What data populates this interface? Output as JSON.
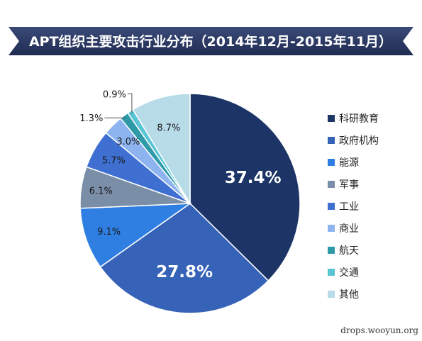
{
  "chart_data": {
    "type": "pie",
    "title": "APT组织主要攻击行业分布（2014年12月-2015年11月）",
    "slices": [
      {
        "name": "科研教育",
        "value": 37.4,
        "label": "37.4%",
        "color": "#1c3466",
        "label_style": "big"
      },
      {
        "name": "政府机构",
        "value": 27.8,
        "label": "27.8%",
        "color": "#3663b8",
        "label_style": "big"
      },
      {
        "name": "能源",
        "value": 9.1,
        "label": "9.1%",
        "color": "#2f7fe3",
        "label_style": "dark"
      },
      {
        "name": "军事",
        "value": 6.1,
        "label": "6.1%",
        "color": "#7a8ea8",
        "label_style": "dark"
      },
      {
        "name": "工业",
        "value": 5.7,
        "label": "5.7%",
        "color": "#3f6fd0",
        "label_style": "dark"
      },
      {
        "name": "商业",
        "value": 3.0,
        "label": "3.0%",
        "color": "#8eb4f0",
        "label_style": "dark"
      },
      {
        "name": "航天",
        "value": 1.3,
        "label": "1.3%",
        "color": "#2e9aa8",
        "label_style": "outside"
      },
      {
        "name": "交通",
        "value": 0.9,
        "label": "0.9%",
        "color": "#58c4d4",
        "label_style": "outside"
      },
      {
        "name": "其他",
        "value": 8.7,
        "label": "8.7%",
        "color": "#b7dce8",
        "label_style": "dark"
      }
    ],
    "legend_position": "right"
  },
  "watermark": "drops.wooyun.org"
}
